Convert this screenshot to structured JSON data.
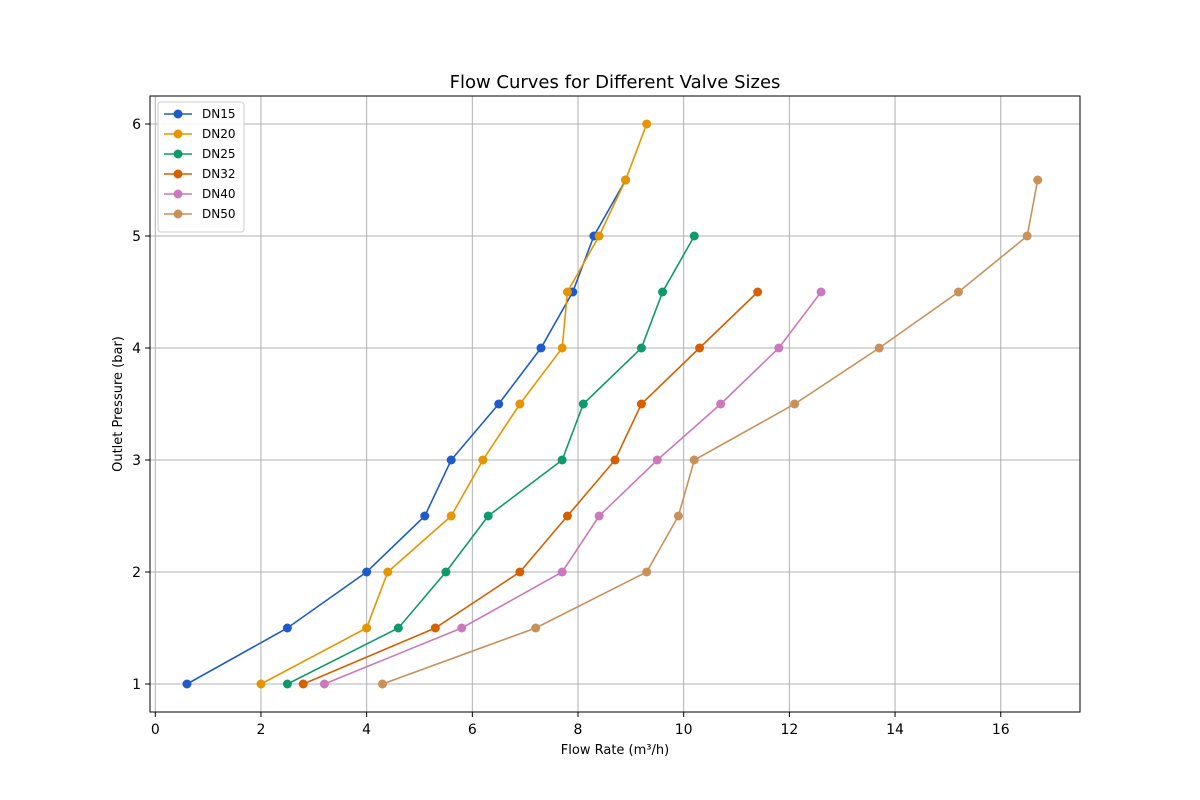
{
  "chart_data": {
    "type": "line",
    "title": "Flow Curves for Different Valve Sizes",
    "xlabel": "Flow Rate (m³/h)",
    "ylabel": "Outlet Pressure (bar)",
    "xlim": [
      -0.1,
      17.5
    ],
    "ylim": [
      0.75,
      6.25
    ],
    "xticks": [
      0,
      2,
      4,
      6,
      8,
      10,
      12,
      14,
      16
    ],
    "yticks": [
      1,
      2,
      3,
      4,
      5,
      6
    ],
    "grid": true,
    "legend_position": "top-left",
    "series": [
      {
        "name": "DN15",
        "color": "#1f5bc8",
        "x": [
          0.6,
          2.5,
          4.0,
          5.1,
          5.6,
          6.5,
          7.3,
          7.9,
          8.3,
          8.9
        ],
        "y": [
          1.0,
          1.5,
          2.0,
          2.5,
          3.0,
          3.5,
          4.0,
          4.5,
          5.0,
          5.5
        ]
      },
      {
        "name": "DN20",
        "color": "#e69500",
        "x": [
          2.0,
          4.0,
          4.4,
          5.6,
          6.2,
          6.9,
          7.7,
          7.8,
          8.4,
          8.9,
          9.3
        ],
        "y": [
          1.0,
          1.5,
          2.0,
          2.5,
          3.0,
          3.5,
          4.0,
          4.5,
          5.0,
          5.5,
          6.0
        ]
      },
      {
        "name": "DN25",
        "color": "#0f9a6e",
        "x": [
          2.5,
          4.6,
          5.5,
          6.3,
          7.7,
          8.1,
          9.2,
          9.6,
          10.2
        ],
        "y": [
          1.0,
          1.5,
          2.0,
          2.5,
          3.0,
          3.5,
          4.0,
          4.5,
          5.0
        ]
      },
      {
        "name": "DN32",
        "color": "#d65f00",
        "x": [
          2.8,
          5.3,
          6.9,
          7.8,
          8.7,
          9.2,
          10.3,
          11.4
        ],
        "y": [
          1.0,
          1.5,
          2.0,
          2.5,
          3.0,
          3.5,
          4.0,
          4.5
        ]
      },
      {
        "name": "DN40",
        "color": "#cc78bc",
        "x": [
          3.2,
          5.8,
          7.7,
          8.4,
          9.5,
          10.7,
          11.8,
          12.6
        ],
        "y": [
          1.0,
          1.5,
          2.0,
          2.5,
          3.0,
          3.5,
          4.0,
          4.5
        ]
      },
      {
        "name": "DN50",
        "color": "#c8915a",
        "x": [
          4.3,
          7.2,
          9.3,
          9.9,
          10.2,
          12.1,
          13.7,
          15.2,
          16.5,
          16.7
        ],
        "y": [
          1.0,
          1.5,
          2.0,
          2.5,
          3.0,
          3.5,
          4.0,
          4.5,
          5.0,
          5.5
        ]
      }
    ]
  }
}
